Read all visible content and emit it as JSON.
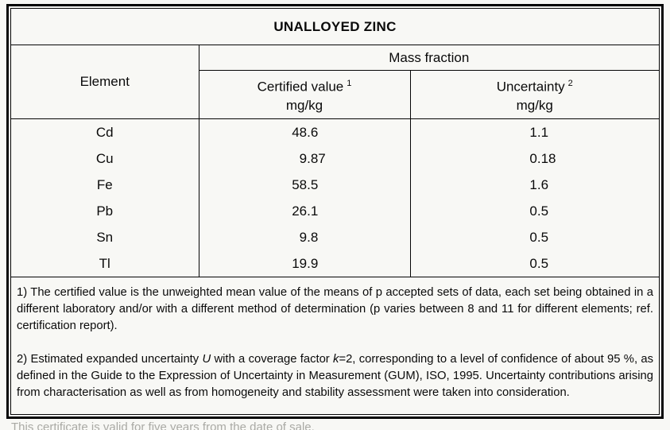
{
  "title": "UNALLOYED ZINC",
  "table": {
    "columns": {
      "element": "Element",
      "mass_fraction": "Mass fraction",
      "certified": {
        "label": "Certified value",
        "footnote_ref": "1",
        "unit": "mg/kg"
      },
      "uncertainty": {
        "label": "Uncertainty",
        "footnote_ref": "2",
        "unit": "mg/kg"
      }
    },
    "rows": [
      {
        "element": "Cd",
        "certified": "48.6",
        "uncertainty": "1.1"
      },
      {
        "element": "Cu",
        "certified": "9.87",
        "uncertainty": "0.18"
      },
      {
        "element": "Fe",
        "certified": "58.5",
        "uncertainty": "1.6"
      },
      {
        "element": "Pb",
        "certified": "26.1",
        "uncertainty": "0.5"
      },
      {
        "element": "Sn",
        "certified": "9.8",
        "uncertainty": "0.5"
      },
      {
        "element": "Tl",
        "certified": "19.9",
        "uncertainty": "0.5"
      }
    ]
  },
  "footnotes": {
    "note1": "1) The certified value is the unweighted mean value of the means of p accepted sets of data, each set being obtained in a different laboratory and/or with a different method of determination (p varies between 8 and 11 for different elements; ref. certification report).",
    "note2_parts": {
      "p1": "2) Estimated expanded uncertainty ",
      "u": "U",
      "p2": " with a coverage factor ",
      "k": "k",
      "p3": "=2, corresponding to a level of confidence of about 95 %, as defined in the Guide to the Expression of Uncertainty in Measurement (GUM), ISO, 1995. Uncertainty contributions arising from characterisation as well as from homogeneity and stability assessment were taken into consideration."
    }
  },
  "bottom_note": "This certificate is valid for five years from the date of sale.",
  "colors": {
    "background": "#f8f8f5",
    "border": "#050505",
    "text": "#0a0a0a",
    "bottom_note": "#aaaaa5"
  }
}
